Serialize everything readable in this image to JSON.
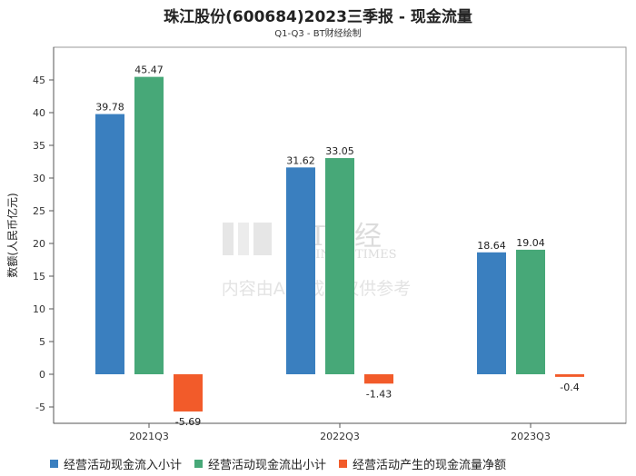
{
  "chart_data": {
    "type": "bar",
    "title": "珠江股份(600684)2023三季报 - 现金流量",
    "subtitle": "Q1-Q3 - BT财经绘制",
    "ylabel": "数额(人民币亿元)",
    "xlabel": "",
    "categories": [
      "2021Q3",
      "2022Q3",
      "2023Q3"
    ],
    "ylim": [
      -7.5,
      50
    ],
    "yticks": [
      -5,
      0,
      5,
      10,
      15,
      20,
      25,
      30,
      35,
      40,
      45
    ],
    "series": [
      {
        "name": "经营活动现金流入小计",
        "color": "#3a7fbf",
        "values": [
          39.78,
          31.62,
          18.64
        ]
      },
      {
        "name": "经营活动现金流出小计",
        "color": "#47a878",
        "values": [
          45.47,
          33.05,
          19.04
        ]
      },
      {
        "name": "经营活动产生的现金流量净额",
        "color": "#f25b2a",
        "values": [
          -5.69,
          -1.43,
          -0.4
        ]
      }
    ],
    "grid": false,
    "legend_position": "bottom-left"
  },
  "watermark": {
    "brand": "BT财经",
    "brand_en": "BUSINESSTIMES",
    "notice": "内容由AI生成，仅供参考"
  }
}
